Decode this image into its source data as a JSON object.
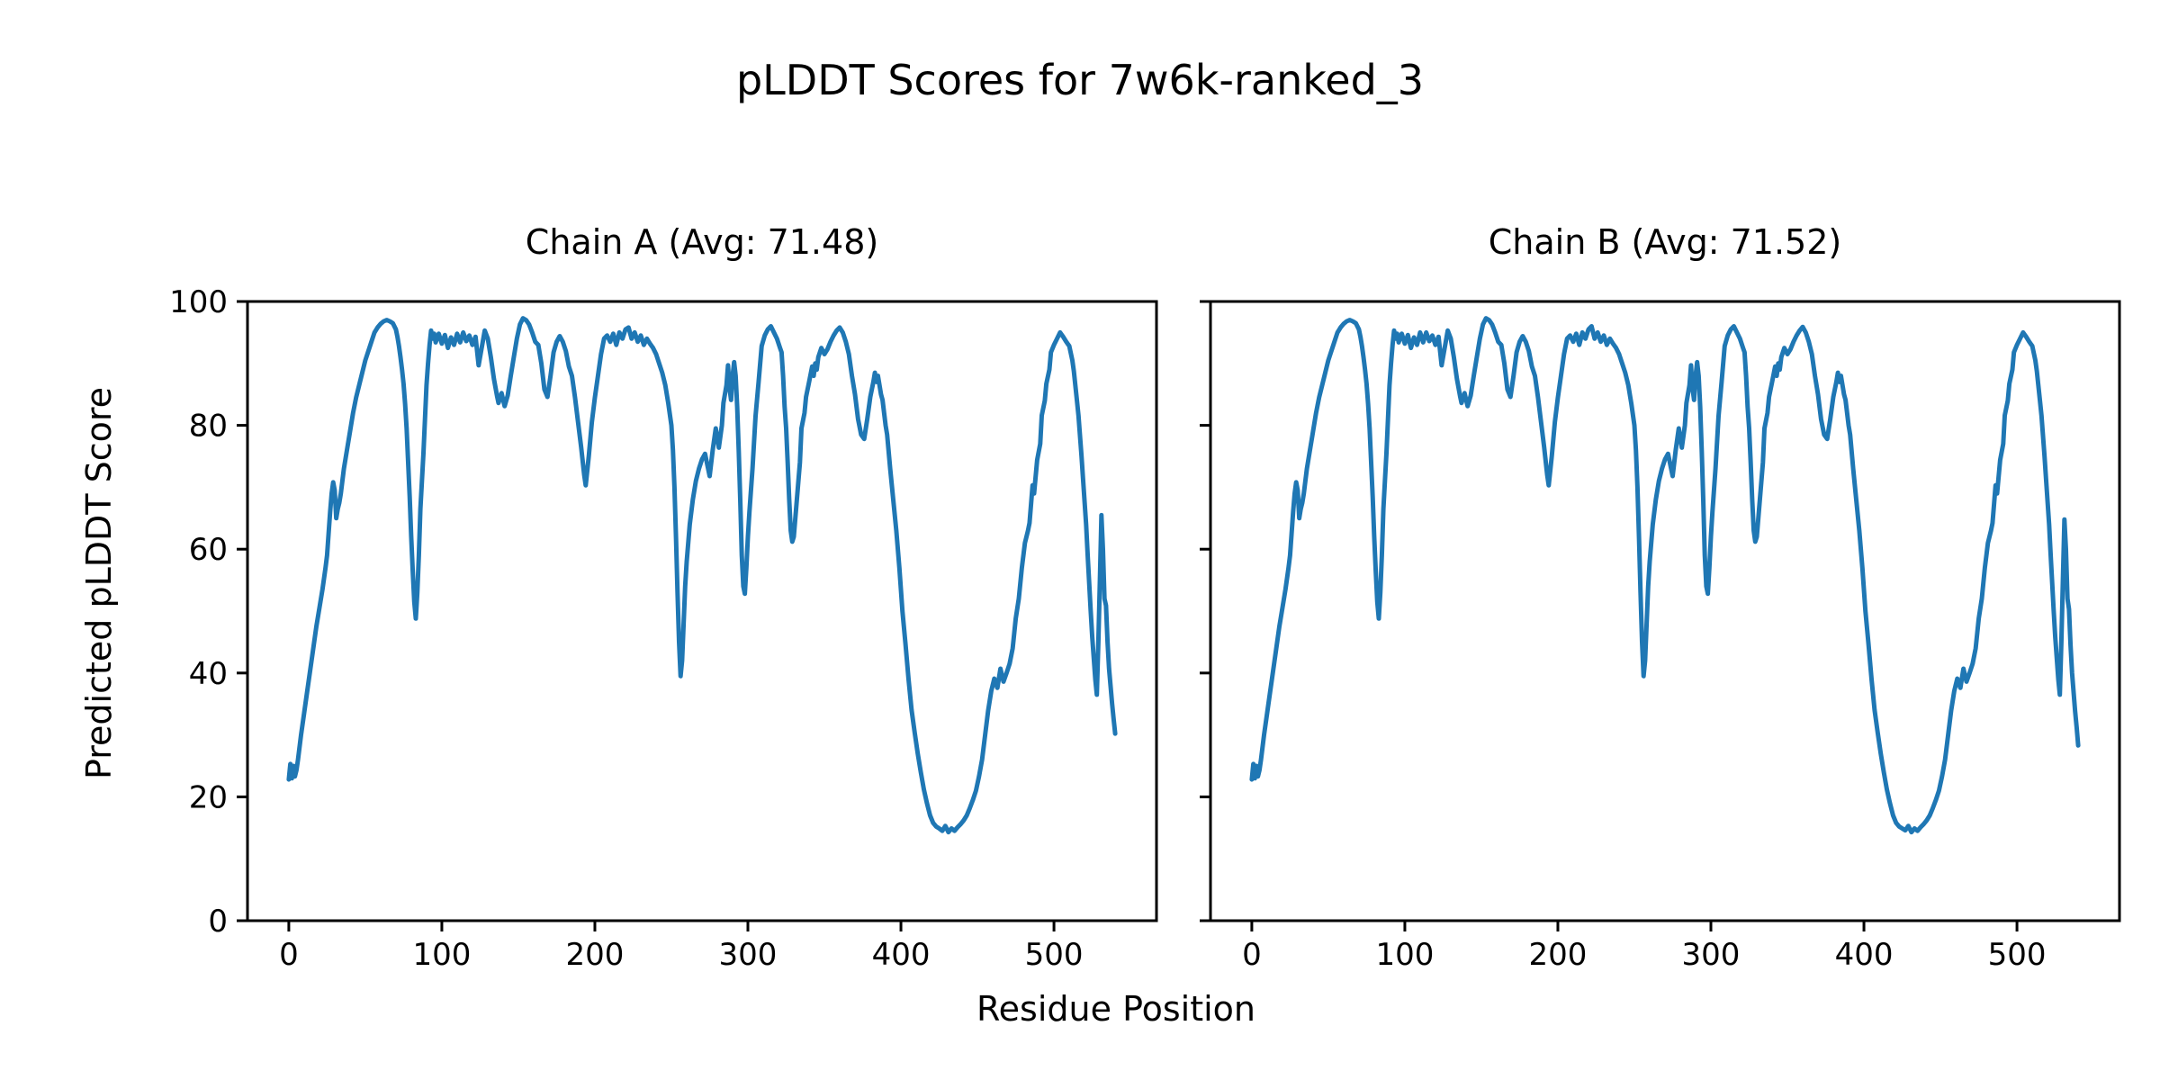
{
  "figure": {
    "title": "pLDDT Scores for 7w6k-ranked_3",
    "xlabel": "Residue Position",
    "ylabel": "Predicted pLDDT Score"
  },
  "colors": {
    "line": "#1f77b4",
    "axis": "#000000",
    "background": "#ffffff"
  },
  "chart_data": [
    {
      "type": "line",
      "chain": "A",
      "avg": 71.48,
      "title": "Chain A (Avg: 71.48)",
      "xlabel": "Residue Position",
      "ylabel": "Predicted pLDDT Score",
      "xlim": [
        -27,
        567
      ],
      "ylim": [
        0,
        100
      ],
      "x_ticks": [
        0,
        100,
        200,
        300,
        400,
        500
      ],
      "y_ticks": [
        0,
        20,
        40,
        60,
        80,
        100
      ],
      "show_y_tick_labels": true,
      "grid": false,
      "legend": null,
      "line_color": "#1f77b4",
      "x": [
        0,
        1,
        2,
        3,
        4,
        5,
        6,
        8,
        10,
        12,
        14,
        16,
        18,
        20,
        22,
        24,
        25,
        26,
        27,
        28,
        29,
        30,
        31,
        32,
        33,
        34,
        35,
        36,
        38,
        40,
        42,
        44,
        46,
        48,
        50,
        52,
        54,
        56,
        58,
        60,
        62,
        64,
        66,
        68,
        70,
        71,
        72,
        73,
        74,
        75,
        76,
        77,
        78,
        79,
        80,
        81,
        82,
        83,
        84,
        85,
        86,
        87,
        88,
        89,
        90,
        91,
        92,
        93,
        94,
        95,
        96,
        97,
        98,
        100,
        102,
        104,
        106,
        108,
        110,
        112,
        114,
        116,
        118,
        120,
        122,
        124,
        126,
        128,
        130,
        132,
        134,
        136,
        137,
        139,
        141,
        143,
        145,
        147,
        149,
        151,
        153,
        155,
        157,
        159,
        161,
        163,
        165,
        167,
        169,
        171,
        173,
        175,
        177,
        179,
        181,
        183,
        185,
        187,
        189,
        191,
        193,
        194,
        196,
        198,
        200,
        202,
        204,
        206,
        208,
        210,
        212,
        214,
        216,
        218,
        220,
        222,
        224,
        226,
        228,
        230,
        232,
        234,
        236,
        238,
        240,
        242,
        244,
        246,
        248,
        250,
        251,
        252,
        253,
        254,
        255,
        256,
        257,
        258,
        259,
        260,
        262,
        264,
        266,
        268,
        270,
        272,
        274,
        275,
        277,
        279,
        281,
        283,
        284,
        286,
        287,
        288,
        289,
        290,
        291,
        292,
        293,
        294,
        295,
        296,
        297,
        298,
        299,
        300,
        301,
        303,
        305,
        307,
        309,
        311,
        313,
        315,
        317,
        319,
        321,
        322,
        323,
        324,
        325,
        326,
        327,
        328,
        329,
        330,
        331,
        332,
        333,
        334,
        335,
        337,
        338,
        340,
        342,
        343,
        344,
        345,
        346,
        348,
        350,
        352,
        354,
        356,
        358,
        360,
        362,
        364,
        366,
        368,
        370,
        372,
        374,
        376,
        378,
        380,
        382,
        383,
        384,
        385,
        386,
        387,
        388,
        390,
        391,
        393,
        395,
        397,
        399,
        401,
        403,
        405,
        407,
        409,
        411,
        413,
        415,
        417,
        419,
        421,
        423,
        425,
        427,
        429,
        431,
        433,
        435,
        437,
        439,
        441,
        443,
        445,
        447,
        449,
        451,
        453,
        455,
        457,
        459,
        461,
        463,
        465,
        467,
        469,
        471,
        473,
        475,
        477,
        479,
        481,
        483,
        484,
        486,
        487,
        489,
        491,
        492,
        494,
        495,
        497,
        498,
        500,
        502,
        504,
        506,
        508,
        510,
        512,
        513,
        515,
        516,
        518,
        519,
        521,
        522,
        524,
        525,
        527,
        528,
        529,
        530,
        531,
        532,
        533,
        534,
        535,
        536,
        538,
        539,
        540
      ],
      "y": [
        22.8,
        25.3,
        23,
        25,
        23.3,
        24.3,
        26,
        30,
        33.5,
        37,
        40.5,
        44,
        47.5,
        50.5,
        53.5,
        57,
        59,
        62.5,
        66,
        69,
        70.8,
        69.5,
        65,
        66.5,
        67.5,
        69,
        71,
        73,
        76,
        79,
        82,
        84.5,
        86.5,
        88.5,
        90.5,
        92,
        93.5,
        95,
        95.8,
        96.4,
        96.8,
        97,
        96.8,
        96.5,
        95.5,
        94.3,
        92.8,
        91,
        89,
        86.7,
        83.5,
        79.5,
        74,
        68.5,
        62,
        56.5,
        51.5,
        48.8,
        53,
        59,
        66.5,
        71,
        75.5,
        81,
        86.5,
        90,
        93,
        95.3,
        94,
        94.8,
        93.4,
        94.2,
        94.8,
        93.2,
        94.6,
        92.5,
        94.2,
        93,
        94.8,
        93.4,
        95,
        93.6,
        94.5,
        93,
        94.3,
        89.7,
        92.5,
        95.3,
        94,
        91,
        87.5,
        84.8,
        83.6,
        85.2,
        83.1,
        84.8,
        88,
        91,
        94,
        96.3,
        97.3,
        97,
        96.3,
        95,
        93.5,
        93,
        90,
        85.8,
        84.6,
        88,
        91.8,
        93.5,
        94.4,
        93.5,
        92,
        89.5,
        88,
        84.5,
        80.5,
        76.5,
        72,
        70.3,
        75,
        80.5,
        84.5,
        88,
        91.5,
        94,
        94.5,
        93.5,
        94.8,
        93,
        95,
        94,
        95.5,
        95.8,
        94,
        95,
        93.5,
        94.5,
        93,
        94,
        93.2,
        92.5,
        91.5,
        90,
        88.5,
        86.5,
        83.5,
        80,
        76,
        70,
        62,
        53,
        45,
        39.5,
        42,
        48,
        54,
        58,
        64,
        68,
        71,
        73,
        74.5,
        75.4,
        73,
        71.8,
        76,
        79.5,
        76.4,
        80,
        83.6,
        86.5,
        89.7,
        86,
        84.1,
        88,
        90.2,
        88,
        83,
        76,
        68,
        59,
        54,
        52.8,
        57,
        62,
        66,
        73,
        81.5,
        87,
        92.8,
        94.5,
        95.5,
        96,
        95,
        94,
        92.5,
        91.8,
        88,
        83,
        79.5,
        74,
        68,
        63,
        61.2,
        62,
        65,
        68,
        71,
        74,
        79.5,
        82,
        84.6,
        87,
        89.5,
        88,
        90,
        89,
        91,
        92.5,
        91.5,
        92.3,
        93.5,
        94.5,
        95.3,
        95.8,
        95,
        93.5,
        91.5,
        88,
        85,
        81,
        78.5,
        77.8,
        81,
        84.6,
        87,
        88.5,
        87,
        88,
        86.5,
        85,
        84.1,
        80,
        78.5,
        73,
        68,
        63,
        57,
        50,
        44.7,
        39,
        34,
        30.4,
        27,
        24,
        21.2,
        19,
        17,
        15.8,
        15.2,
        14.9,
        14.5,
        15.3,
        14.3,
        14.9,
        14.5,
        15.1,
        15.6,
        16.2,
        17,
        18.2,
        19.5,
        21,
        23.3,
        26,
        30,
        34,
        37.1,
        39.1,
        37.6,
        40.7,
        38.6,
        40,
        41.5,
        44,
        48.8,
        52,
        57,
        61,
        63,
        64.2,
        70.3,
        69,
        74.4,
        77,
        81.6,
        84,
        86.7,
        89,
        91.8,
        93,
        94,
        95,
        94.3,
        93.5,
        92.8,
        90.5,
        88.7,
        84,
        81.6,
        75,
        71.3,
        64,
        59.1,
        50,
        45.8,
        39,
        36.5,
        45,
        55,
        65.5,
        60,
        52,
        50.9,
        45,
        40.7,
        35,
        32.5,
        30.2
      ]
    },
    {
      "type": "line",
      "chain": "B",
      "avg": 71.52,
      "title": "Chain B (Avg: 71.52)",
      "xlabel": "Residue Position",
      "ylabel": "Predicted pLDDT Score",
      "xlim": [
        -27,
        567
      ],
      "ylim": [
        0,
        100
      ],
      "x_ticks": [
        0,
        100,
        200,
        300,
        400,
        500
      ],
      "y_ticks": [
        0,
        20,
        40,
        60,
        80,
        100
      ],
      "show_y_tick_labels": false,
      "grid": false,
      "legend": null,
      "line_color": "#1f77b4",
      "x": [
        0,
        1,
        2,
        3,
        4,
        5,
        6,
        8,
        10,
        12,
        14,
        16,
        18,
        20,
        22,
        24,
        25,
        26,
        27,
        28,
        29,
        30,
        31,
        32,
        33,
        34,
        35,
        36,
        38,
        40,
        42,
        44,
        46,
        48,
        50,
        52,
        54,
        56,
        58,
        60,
        62,
        64,
        66,
        68,
        70,
        71,
        72,
        73,
        74,
        75,
        76,
        77,
        78,
        79,
        80,
        81,
        82,
        83,
        84,
        85,
        86,
        87,
        88,
        89,
        90,
        91,
        92,
        93,
        94,
        95,
        96,
        97,
        98,
        100,
        102,
        104,
        106,
        108,
        110,
        112,
        114,
        116,
        118,
        120,
        122,
        124,
        126,
        128,
        130,
        132,
        134,
        136,
        137,
        139,
        141,
        143,
        145,
        147,
        149,
        151,
        153,
        155,
        157,
        159,
        161,
        163,
        165,
        167,
        169,
        171,
        173,
        175,
        177,
        179,
        181,
        183,
        185,
        187,
        189,
        191,
        193,
        194,
        196,
        198,
        200,
        202,
        204,
        206,
        208,
        210,
        212,
        214,
        216,
        218,
        220,
        222,
        224,
        226,
        228,
        230,
        232,
        234,
        236,
        238,
        240,
        242,
        244,
        246,
        248,
        250,
        251,
        252,
        253,
        254,
        255,
        256,
        257,
        258,
        259,
        260,
        262,
        264,
        266,
        268,
        270,
        272,
        274,
        275,
        277,
        279,
        281,
        283,
        284,
        286,
        287,
        288,
        289,
        290,
        291,
        292,
        293,
        294,
        295,
        296,
        297,
        298,
        299,
        300,
        301,
        303,
        305,
        307,
        309,
        311,
        313,
        315,
        317,
        319,
        321,
        322,
        323,
        324,
        325,
        326,
        327,
        328,
        329,
        330,
        331,
        332,
        333,
        334,
        335,
        337,
        338,
        340,
        342,
        343,
        344,
        345,
        346,
        348,
        350,
        352,
        354,
        356,
        358,
        360,
        362,
        364,
        366,
        368,
        370,
        372,
        374,
        376,
        378,
        380,
        382,
        383,
        384,
        385,
        386,
        387,
        388,
        390,
        391,
        393,
        395,
        397,
        399,
        401,
        403,
        405,
        407,
        409,
        411,
        413,
        415,
        417,
        419,
        421,
        423,
        425,
        427,
        429,
        431,
        433,
        435,
        437,
        439,
        441,
        443,
        445,
        447,
        449,
        451,
        453,
        455,
        457,
        459,
        461,
        463,
        465,
        467,
        469,
        471,
        473,
        475,
        477,
        479,
        481,
        483,
        484,
        486,
        487,
        489,
        491,
        492,
        494,
        495,
        497,
        498,
        500,
        502,
        504,
        506,
        508,
        510,
        512,
        513,
        515,
        516,
        518,
        519,
        521,
        522,
        524,
        525,
        527,
        528,
        529,
        530,
        531,
        532,
        533,
        534,
        535,
        536,
        538,
        539,
        540
      ],
      "y": [
        22.8,
        25.3,
        23,
        25,
        23.3,
        24.3,
        26,
        30,
        33.5,
        37,
        40.5,
        44,
        47.5,
        50.5,
        53.5,
        57,
        59,
        62.5,
        66,
        69,
        70.8,
        69.5,
        65,
        66.5,
        67.5,
        69,
        71,
        73,
        76,
        79,
        82,
        84.5,
        86.5,
        88.5,
        90.5,
        92,
        93.5,
        95,
        95.8,
        96.4,
        96.8,
        97,
        96.8,
        96.5,
        95.5,
        94.3,
        92.8,
        91,
        89,
        86.7,
        83.5,
        79.5,
        74,
        68.5,
        62,
        56.5,
        51.5,
        48.8,
        53,
        59,
        66.5,
        71,
        75.5,
        81,
        86.5,
        90,
        93,
        95.3,
        94,
        94.8,
        93.4,
        94.2,
        94.8,
        93.2,
        94.6,
        92.5,
        94.2,
        93,
        95,
        93.4,
        95,
        93.6,
        94.5,
        93,
        94.3,
        89.7,
        92.5,
        95.3,
        94,
        91,
        87.5,
        84.8,
        83.6,
        85.2,
        83.1,
        84.8,
        88,
        91,
        94,
        96.3,
        97.3,
        97,
        96.3,
        95,
        93.5,
        93,
        90,
        85.8,
        84.6,
        88,
        91.8,
        93.5,
        94.4,
        93.5,
        92,
        89.5,
        88,
        84.5,
        80.5,
        76.5,
        72,
        70.3,
        75,
        80.5,
        84.5,
        88,
        91.5,
        94,
        94.5,
        93.5,
        94.8,
        93,
        95,
        94,
        95.5,
        96,
        94,
        95,
        93.5,
        94.5,
        93,
        94,
        93.2,
        92.5,
        91.5,
        90,
        88.5,
        86.5,
        83.5,
        80,
        76,
        70,
        62,
        53,
        45,
        39.5,
        42,
        48,
        54,
        58,
        64,
        68,
        71,
        73,
        74.5,
        75.4,
        73,
        71.8,
        76,
        79.5,
        76.4,
        80,
        83.6,
        86.5,
        89.7,
        86,
        84.1,
        88,
        90.2,
        88,
        83,
        76,
        68,
        59,
        54,
        52.8,
        57,
        62,
        66,
        73,
        81.5,
        87,
        92.8,
        94.5,
        95.5,
        96,
        95,
        94,
        92.5,
        91.8,
        88,
        83,
        79.5,
        74,
        68,
        63,
        61.2,
        62,
        65,
        68,
        71,
        74,
        79.5,
        82,
        84.6,
        87,
        89.5,
        88,
        90,
        89,
        91,
        92.5,
        91.5,
        92.3,
        93.5,
        94.5,
        95.3,
        95.9,
        95,
        93.5,
        91.5,
        88,
        85,
        81,
        78.5,
        77.8,
        81,
        84.6,
        87,
        88.5,
        87,
        88,
        86.5,
        85,
        84.1,
        80,
        78.5,
        73,
        68,
        63,
        57,
        50,
        44.7,
        39,
        34,
        30.4,
        27,
        24,
        21.2,
        19,
        17,
        15.8,
        15.2,
        14.9,
        14.6,
        15.3,
        14.3,
        14.9,
        14.5,
        15.1,
        15.6,
        16.2,
        17,
        18.2,
        19.5,
        21,
        23.3,
        26,
        30,
        34,
        37.1,
        39.1,
        37.6,
        40.7,
        38.6,
        40,
        41.5,
        44,
        48.8,
        52,
        57,
        61,
        63,
        64.2,
        70.3,
        69,
        74.4,
        77,
        81.6,
        84,
        86.7,
        89,
        91.8,
        93,
        94,
        95,
        94.3,
        93.5,
        92.8,
        90.5,
        88.7,
        84,
        81.6,
        75,
        71.3,
        64,
        59.1,
        50,
        45.8,
        39,
        36.5,
        45,
        55,
        64.8,
        60,
        52,
        50.3,
        44.5,
        40,
        33.8,
        31.2,
        28.3
      ]
    }
  ]
}
